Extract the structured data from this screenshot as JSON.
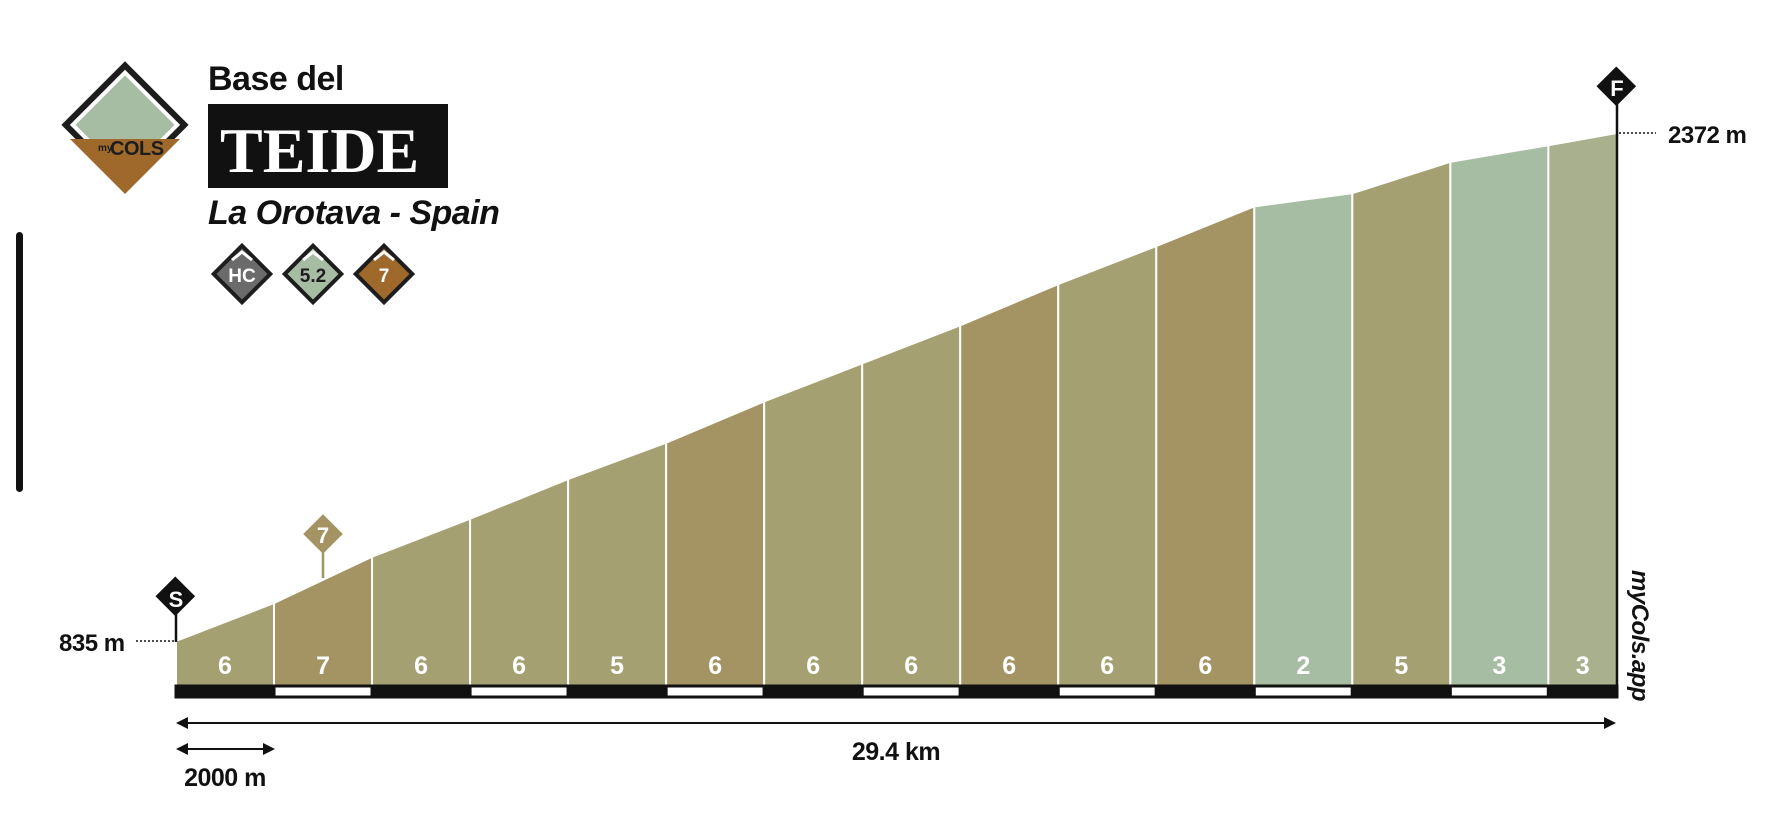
{
  "header": {
    "pre_title": "Base del",
    "title": "TEIDE",
    "subtitle": "La Orotava - Spain",
    "logo_text_small": "my",
    "logo_text_big": "COLS",
    "badges": [
      {
        "text": "HC",
        "color": "#6b6b6b"
      },
      {
        "text": "5.2",
        "color": "#a7bda3"
      },
      {
        "text": "7",
        "color": "#a0692c"
      }
    ]
  },
  "markers": {
    "start": "S",
    "finish": "F",
    "max_gradient_marker": "7"
  },
  "watermark": "myCols.app",
  "colors": {
    "brown": "#a49463",
    "olive": "#a5a071",
    "sage": "#a7bda3",
    "sage_mid": "#a8b08e",
    "ink": "#111111"
  },
  "chart_data": {
    "type": "area",
    "title": "TEIDE",
    "start_label": "835 m",
    "end_label": "2372 m",
    "total_distance_label": "29.4 km",
    "scale_label": "2000 m",
    "x_unit": "km",
    "y_unit": "m",
    "segment_length_km": 2,
    "ylim": [
      835,
      2372
    ],
    "xlim": [
      0,
      29.4
    ],
    "segments": [
      {
        "start_km": 0,
        "end_km": 2,
        "start_elev": 835,
        "end_elev": 950,
        "gradient": "6",
        "color": "olive"
      },
      {
        "start_km": 2,
        "end_km": 4,
        "start_elev": 950,
        "end_elev": 1090,
        "gradient": "7",
        "color": "brown"
      },
      {
        "start_km": 4,
        "end_km": 6,
        "start_elev": 1090,
        "end_elev": 1205,
        "gradient": "6",
        "color": "olive"
      },
      {
        "start_km": 6,
        "end_km": 8,
        "start_elev": 1205,
        "end_elev": 1325,
        "gradient": "6",
        "color": "olive"
      },
      {
        "start_km": 8,
        "end_km": 10,
        "start_elev": 1325,
        "end_elev": 1435,
        "gradient": "5",
        "color": "olive"
      },
      {
        "start_km": 10,
        "end_km": 12,
        "start_elev": 1435,
        "end_elev": 1560,
        "gradient": "6",
        "color": "brown"
      },
      {
        "start_km": 12,
        "end_km": 14,
        "start_elev": 1560,
        "end_elev": 1675,
        "gradient": "6",
        "color": "olive"
      },
      {
        "start_km": 14,
        "end_km": 16,
        "start_elev": 1675,
        "end_elev": 1790,
        "gradient": "6",
        "color": "olive"
      },
      {
        "start_km": 16,
        "end_km": 18,
        "start_elev": 1790,
        "end_elev": 1915,
        "gradient": "6",
        "color": "brown"
      },
      {
        "start_km": 18,
        "end_km": 20,
        "start_elev": 1915,
        "end_elev": 2030,
        "gradient": "6",
        "color": "olive"
      },
      {
        "start_km": 20,
        "end_km": 22,
        "start_elev": 2030,
        "end_elev": 2150,
        "gradient": "6",
        "color": "brown"
      },
      {
        "start_km": 22,
        "end_km": 24,
        "start_elev": 2150,
        "end_elev": 2190,
        "gradient": "2",
        "color": "sage"
      },
      {
        "start_km": 24,
        "end_km": 26,
        "start_elev": 2190,
        "end_elev": 2285,
        "gradient": "5",
        "color": "olive"
      },
      {
        "start_km": 26,
        "end_km": 28,
        "start_elev": 2285,
        "end_elev": 2335,
        "gradient": "3",
        "color": "sage"
      },
      {
        "start_km": 28,
        "end_km": 29.4,
        "start_elev": 2335,
        "end_elev": 2372,
        "gradient": "3",
        "color": "sage_mid"
      }
    ],
    "max_gradient_km": 3
  }
}
